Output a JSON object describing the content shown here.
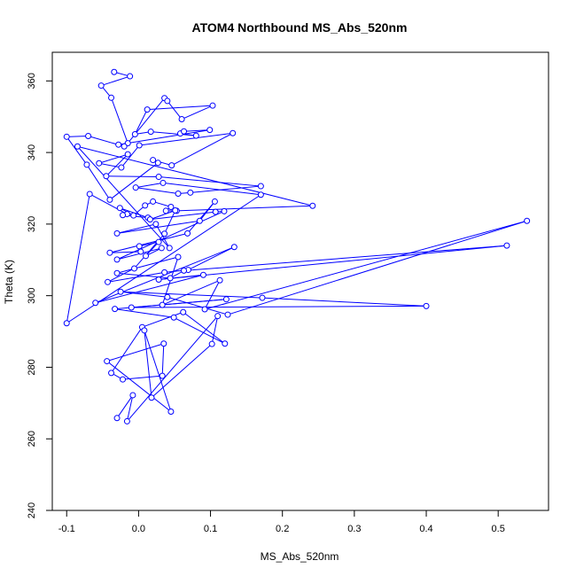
{
  "chart_data": {
    "type": "line",
    "title": "ATOM4 Northbound MS_Abs_520nm",
    "xlabel": "MS_Abs_520nm",
    "ylabel": "Theta (K)",
    "xlim": [
      -0.12,
      0.57
    ],
    "ylim": [
      240,
      368
    ],
    "xticks": [
      "-0.1",
      "0.0",
      "0.1",
      "0.2",
      "0.3",
      "0.4",
      "0.5"
    ],
    "xtick_values": [
      -0.1,
      0.0,
      0.1,
      0.2,
      0.3,
      0.4,
      0.5
    ],
    "yticks": [
      "240",
      "260",
      "280",
      "300",
      "320",
      "340",
      "360"
    ],
    "ytick_values": [
      240,
      260,
      280,
      300,
      320,
      340,
      360
    ],
    "marker": "open-circle",
    "line_color": "#0000ff",
    "series": [
      {
        "x": [
          -0.034,
          -0.012,
          -0.052,
          -0.038,
          -0.015,
          0.036,
          0.04,
          0.06,
          0.103,
          0.012,
          -0.005,
          0.017,
          0.08,
          0.058,
          0.063,
          0.099,
          -0.028,
          -0.02,
          -0.07,
          -0.1,
          -0.072,
          -0.04,
          0.027,
          0.02,
          0.046,
          0.131,
          0.001,
          -0.024,
          -0.055,
          -0.015,
          -0.045,
          0.028,
          0.17,
          0.072,
          0.055,
          -0.004,
          0.034,
          0.17,
          -0.1,
          -0.068,
          -0.016,
          -0.022,
          0.013,
          -0.026,
          -0.007,
          0.009,
          0.02,
          0.045,
          0.038,
          0.053,
          0.242,
          -0.085,
          0.043,
          0.024,
          -0.03,
          0.085,
          0.106,
          0.068,
          -0.04,
          0.003,
          0.001,
          0.028,
          0.01,
          0.032,
          -0.03,
          0.119,
          0.107,
          0.016,
          0.051,
          0.036,
          -0.006,
          -0.043,
          0.036,
          0.069,
          0.133,
          -0.06,
          0.09,
          0.028,
          0.512,
          0.063,
          0.044,
          -0.03,
          0.055,
          0.033,
          0.113,
          0.092,
          0.54,
          0.124,
          0.04,
          -0.025,
          0.172,
          0.4,
          -0.01,
          0.122,
          -0.033,
          0.049,
          0.12,
          0.062,
          0.005,
          -0.038,
          -0.022,
          0.033,
          0.035,
          -0.044,
          0.045,
          0.008,
          0.018,
          0.102,
          0.11,
          -0.016,
          -0.008,
          -0.03
        ],
        "y": [
          362.5,
          361.3,
          358.7,
          355.3,
          342.6,
          355.2,
          354.4,
          349.3,
          353.1,
          352.0,
          345.1,
          345.8,
          344.7,
          345.3,
          345.9,
          346.3,
          342.2,
          341.7,
          344.6,
          344.4,
          336.6,
          326.8,
          337.1,
          337.9,
          336.4,
          345.4,
          342.0,
          335.8,
          337.0,
          339.5,
          333.4,
          333.2,
          330.6,
          328.8,
          328.5,
          330.2,
          331.5,
          328.2,
          292.3,
          328.4,
          322.8,
          322.5,
          321.8,
          324.5,
          322.4,
          325.2,
          326.3,
          324.8,
          323.7,
          323.7,
          325.1,
          341.7,
          313.3,
          320.0,
          317.4,
          320.9,
          326.3,
          317.4,
          312.0,
          312.3,
          313.8,
          315.0,
          311.1,
          313.3,
          310.1,
          323.6,
          323.4,
          321.3,
          323.8,
          317.3,
          307.6,
          303.8,
          306.5,
          307.2,
          313.6,
          298.0,
          305.8,
          304.5,
          314.0,
          307.0,
          304.9,
          306.3,
          310.8,
          297.4,
          304.3,
          296.2,
          320.9,
          294.7,
          299.6,
          301.1,
          299.4,
          297.1,
          296.7,
          299.0,
          296.3,
          293.9,
          286.6,
          295.4,
          291.2,
          278.4,
          276.6,
          277.6,
          286.6,
          281.7,
          267.6,
          290.3,
          271.5,
          286.5,
          294.3,
          264.9,
          272.2,
          265.8
        ]
      }
    ]
  }
}
